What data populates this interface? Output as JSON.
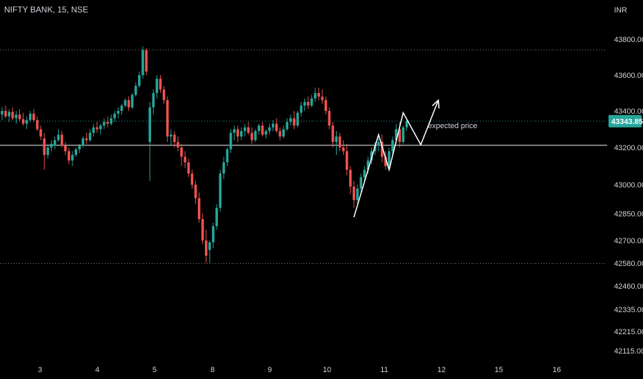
{
  "header": {
    "symbol": "NIFTY BANK, 15, NSE",
    "currency": "INR"
  },
  "chart_data": {
    "type": "candlestick",
    "title": "NIFTY BANK, 15, NSE",
    "y_unit": "INR",
    "y_ticks": [
      43800.0,
      43600.0,
      43400.0,
      43200.0,
      43000.0,
      42850.0,
      42700.0,
      42580.0,
      42460.0,
      42335.0,
      42215.0,
      42115.0
    ],
    "y_tick_labels": [
      "43800.00",
      "43600.00",
      "43400.00",
      "43200.00",
      "43000.00",
      "42850.00",
      "42700.00",
      "42580.00",
      "42460.00",
      "42335.00",
      "42215.00",
      "42115.00"
    ],
    "x_tick_labels": [
      "3",
      "4",
      "5",
      "8",
      "9",
      "10",
      "11",
      "12",
      "15",
      "16"
    ],
    "last_price": "43343.85",
    "colors": {
      "up": "#26a69a",
      "down": "#ef5350",
      "price_label_bg": "#26a69a",
      "annotation": "#ffffff"
    },
    "horizontal_levels": [
      {
        "value": 43740,
        "style": "dotted"
      },
      {
        "value": 43343.85,
        "style": "dotted-green"
      },
      {
        "value": 43212,
        "style": "solid"
      },
      {
        "value": 42578,
        "style": "dotted"
      }
    ],
    "candles": [
      {
        "o": 43380,
        "h": 43420,
        "l": 43350,
        "c": 43400
      },
      {
        "o": 43400,
        "h": 43430,
        "l": 43360,
        "c": 43370
      },
      {
        "o": 43370,
        "h": 43410,
        "l": 43340,
        "c": 43395
      },
      {
        "o": 43395,
        "h": 43420,
        "l": 43350,
        "c": 43360
      },
      {
        "o": 43360,
        "h": 43400,
        "l": 43330,
        "c": 43380
      },
      {
        "o": 43380,
        "h": 43410,
        "l": 43345,
        "c": 43355
      },
      {
        "o": 43355,
        "h": 43390,
        "l": 43320,
        "c": 43330
      },
      {
        "o": 43330,
        "h": 43370,
        "l": 43300,
        "c": 43350
      },
      {
        "o": 43350,
        "h": 43400,
        "l": 43340,
        "c": 43385
      },
      {
        "o": 43385,
        "h": 43410,
        "l": 43340,
        "c": 43350
      },
      {
        "o": 43350,
        "h": 43370,
        "l": 43290,
        "c": 43300
      },
      {
        "o": 43300,
        "h": 43320,
        "l": 43240,
        "c": 43260
      },
      {
        "o": 43250,
        "h": 43280,
        "l": 43080,
        "c": 43160
      },
      {
        "o": 43160,
        "h": 43220,
        "l": 43140,
        "c": 43200
      },
      {
        "o": 43200,
        "h": 43240,
        "l": 43180,
        "c": 43220
      },
      {
        "o": 43210,
        "h": 43260,
        "l": 43190,
        "c": 43240
      },
      {
        "o": 43240,
        "h": 43300,
        "l": 43230,
        "c": 43270
      },
      {
        "o": 43270,
        "h": 43290,
        "l": 43200,
        "c": 43210
      },
      {
        "o": 43210,
        "h": 43230,
        "l": 43160,
        "c": 43180
      },
      {
        "o": 43180,
        "h": 43200,
        "l": 43110,
        "c": 43130
      },
      {
        "o": 43130,
        "h": 43180,
        "l": 43100,
        "c": 43160
      },
      {
        "o": 43160,
        "h": 43200,
        "l": 43150,
        "c": 43190
      },
      {
        "o": 43190,
        "h": 43220,
        "l": 43170,
        "c": 43210
      },
      {
        "o": 43210,
        "h": 43260,
        "l": 43200,
        "c": 43250
      },
      {
        "o": 43250,
        "h": 43280,
        "l": 43220,
        "c": 43240
      },
      {
        "o": 43240,
        "h": 43300,
        "l": 43230,
        "c": 43280
      },
      {
        "o": 43280,
        "h": 43330,
        "l": 43260,
        "c": 43310
      },
      {
        "o": 43310,
        "h": 43340,
        "l": 43280,
        "c": 43300
      },
      {
        "o": 43300,
        "h": 43330,
        "l": 43270,
        "c": 43320
      },
      {
        "o": 43320,
        "h": 43360,
        "l": 43300,
        "c": 43340
      },
      {
        "o": 43340,
        "h": 43370,
        "l": 43310,
        "c": 43330
      },
      {
        "o": 43330,
        "h": 43380,
        "l": 43320,
        "c": 43360
      },
      {
        "o": 43360,
        "h": 43400,
        "l": 43340,
        "c": 43385
      },
      {
        "o": 43385,
        "h": 43420,
        "l": 43360,
        "c": 43400
      },
      {
        "o": 43400,
        "h": 43440,
        "l": 43380,
        "c": 43430
      },
      {
        "o": 43430,
        "h": 43470,
        "l": 43420,
        "c": 43460
      },
      {
        "o": 43460,
        "h": 43480,
        "l": 43400,
        "c": 43420
      },
      {
        "o": 43420,
        "h": 43500,
        "l": 43410,
        "c": 43490
      },
      {
        "o": 43490,
        "h": 43560,
        "l": 43480,
        "c": 43540
      },
      {
        "o": 43540,
        "h": 43620,
        "l": 43530,
        "c": 43600
      },
      {
        "o": 43600,
        "h": 43760,
        "l": 43580,
        "c": 43740
      },
      {
        "o": 43740,
        "h": 43750,
        "l": 43600,
        "c": 43620
      },
      {
        "o": 43230,
        "h": 43450,
        "l": 43020,
        "c": 43420
      },
      {
        "o": 43420,
        "h": 43520,
        "l": 43380,
        "c": 43500
      },
      {
        "o": 43500,
        "h": 43600,
        "l": 43470,
        "c": 43580
      },
      {
        "o": 43580,
        "h": 43600,
        "l": 43500,
        "c": 43520
      },
      {
        "o": 43520,
        "h": 43540,
        "l": 43440,
        "c": 43460
      },
      {
        "o": 43460,
        "h": 43480,
        "l": 43230,
        "c": 43260
      },
      {
        "o": 43260,
        "h": 43300,
        "l": 43210,
        "c": 43270
      },
      {
        "o": 43270,
        "h": 43290,
        "l": 43200,
        "c": 43230
      },
      {
        "o": 43230,
        "h": 43260,
        "l": 43180,
        "c": 43200
      },
      {
        "o": 43200,
        "h": 43220,
        "l": 43100,
        "c": 43150
      },
      {
        "o": 43150,
        "h": 43180,
        "l": 43090,
        "c": 43120
      },
      {
        "o": 43120,
        "h": 43140,
        "l": 43040,
        "c": 43060
      },
      {
        "o": 43060,
        "h": 43080,
        "l": 42980,
        "c": 43000
      },
      {
        "o": 43000,
        "h": 43020,
        "l": 42900,
        "c": 42930
      },
      {
        "o": 42930,
        "h": 42960,
        "l": 42800,
        "c": 42820
      },
      {
        "o": 42820,
        "h": 42850,
        "l": 42680,
        "c": 42700
      },
      {
        "o": 42700,
        "h": 42760,
        "l": 42580,
        "c": 42620
      },
      {
        "o": 42650,
        "h": 42700,
        "l": 42580,
        "c": 42690
      },
      {
        "o": 42690,
        "h": 42800,
        "l": 42660,
        "c": 42780
      },
      {
        "o": 42780,
        "h": 42900,
        "l": 42760,
        "c": 42880
      },
      {
        "o": 42880,
        "h": 43080,
        "l": 42860,
        "c": 43060
      },
      {
        "o": 43060,
        "h": 43150,
        "l": 43030,
        "c": 43120
      },
      {
        "o": 43120,
        "h": 43200,
        "l": 43100,
        "c": 43190
      },
      {
        "o": 43190,
        "h": 43300,
        "l": 43170,
        "c": 43280
      },
      {
        "o": 43280,
        "h": 43320,
        "l": 43240,
        "c": 43300
      },
      {
        "o": 43300,
        "h": 43320,
        "l": 43230,
        "c": 43260
      },
      {
        "o": 43260,
        "h": 43310,
        "l": 43240,
        "c": 43290
      },
      {
        "o": 43290,
        "h": 43330,
        "l": 43260,
        "c": 43310
      },
      {
        "o": 43310,
        "h": 43340,
        "l": 43270,
        "c": 43280
      },
      {
        "o": 43280,
        "h": 43310,
        "l": 43220,
        "c": 43240
      },
      {
        "o": 43240,
        "h": 43300,
        "l": 43230,
        "c": 43290
      },
      {
        "o": 43290,
        "h": 43330,
        "l": 43270,
        "c": 43320
      },
      {
        "o": 43320,
        "h": 43340,
        "l": 43260,
        "c": 43270
      },
      {
        "o": 43270,
        "h": 43300,
        "l": 43250,
        "c": 43290
      },
      {
        "o": 43290,
        "h": 43330,
        "l": 43270,
        "c": 43310
      },
      {
        "o": 43310,
        "h": 43350,
        "l": 43290,
        "c": 43330
      },
      {
        "o": 43330,
        "h": 43360,
        "l": 43280,
        "c": 43290
      },
      {
        "o": 43290,
        "h": 43310,
        "l": 43240,
        "c": 43260
      },
      {
        "o": 43260,
        "h": 43320,
        "l": 43250,
        "c": 43300
      },
      {
        "o": 43300,
        "h": 43360,
        "l": 43290,
        "c": 43340
      },
      {
        "o": 43340,
        "h": 43380,
        "l": 43320,
        "c": 43360
      },
      {
        "o": 43360,
        "h": 43400,
        "l": 43300,
        "c": 43320
      },
      {
        "o": 43320,
        "h": 43400,
        "l": 43310,
        "c": 43390
      },
      {
        "o": 43390,
        "h": 43450,
        "l": 43370,
        "c": 43430
      },
      {
        "o": 43430,
        "h": 43470,
        "l": 43400,
        "c": 43450
      },
      {
        "o": 43450,
        "h": 43480,
        "l": 43410,
        "c": 43430
      },
      {
        "o": 43430,
        "h": 43490,
        "l": 43420,
        "c": 43470
      },
      {
        "o": 43470,
        "h": 43530,
        "l": 43450,
        "c": 43500
      },
      {
        "o": 43500,
        "h": 43530,
        "l": 43460,
        "c": 43480
      },
      {
        "o": 43480,
        "h": 43520,
        "l": 43440,
        "c": 43460
      },
      {
        "o": 43460,
        "h": 43480,
        "l": 43380,
        "c": 43400
      },
      {
        "o": 43400,
        "h": 43420,
        "l": 43300,
        "c": 43320
      },
      {
        "o": 43320,
        "h": 43340,
        "l": 43200,
        "c": 43230
      },
      {
        "o": 43230,
        "h": 43290,
        "l": 43160,
        "c": 43260
      },
      {
        "o": 43260,
        "h": 43280,
        "l": 43180,
        "c": 43200
      },
      {
        "o": 43200,
        "h": 43240,
        "l": 43160,
        "c": 43180
      },
      {
        "o": 43180,
        "h": 43220,
        "l": 43050,
        "c": 43080
      },
      {
        "o": 43080,
        "h": 43100,
        "l": 42950,
        "c": 42990
      },
      {
        "o": 42990,
        "h": 43020,
        "l": 42880,
        "c": 42920
      },
      {
        "o": 42920,
        "h": 43000,
        "l": 42900,
        "c": 42980
      },
      {
        "o": 42980,
        "h": 43060,
        "l": 42960,
        "c": 43040
      },
      {
        "o": 43040,
        "h": 43100,
        "l": 43020,
        "c": 43080
      },
      {
        "o": 43080,
        "h": 43150,
        "l": 43060,
        "c": 43130
      },
      {
        "o": 43130,
        "h": 43200,
        "l": 43110,
        "c": 43180
      },
      {
        "o": 43180,
        "h": 43230,
        "l": 43160,
        "c": 43210
      },
      {
        "o": 43210,
        "h": 43250,
        "l": 43180,
        "c": 43230
      },
      {
        "o": 43230,
        "h": 43270,
        "l": 43120,
        "c": 43150
      },
      {
        "o": 43150,
        "h": 43180,
        "l": 43080,
        "c": 43100
      },
      {
        "o": 43100,
        "h": 43200,
        "l": 43080,
        "c": 43180
      },
      {
        "o": 43180,
        "h": 43260,
        "l": 43160,
        "c": 43240
      },
      {
        "o": 43240,
        "h": 43330,
        "l": 43220,
        "c": 43300
      },
      {
        "o": 43300,
        "h": 43340,
        "l": 43200,
        "c": 43230
      },
      {
        "o": 43230,
        "h": 43320,
        "l": 43220,
        "c": 43310
      },
      {
        "o": 43310,
        "h": 43360,
        "l": 43290,
        "c": 43343.85
      }
    ],
    "x_tick_candle_index": [
      10,
      26,
      42,
      58,
      74,
      90,
      106,
      122,
      138,
      154
    ],
    "projection_path": [
      {
        "i": 100,
        "p": 42830
      },
      {
        "i": 107,
        "p": 43270
      },
      {
        "i": 110,
        "p": 43080
      },
      {
        "i": 114,
        "p": 43390
      },
      {
        "i": 119,
        "p": 43215
      },
      {
        "i": 124,
        "p": 43460
      }
    ],
    "annotation_text": "expected price",
    "annotation_anchor": {
      "i": 122,
      "p": 43260
    }
  }
}
